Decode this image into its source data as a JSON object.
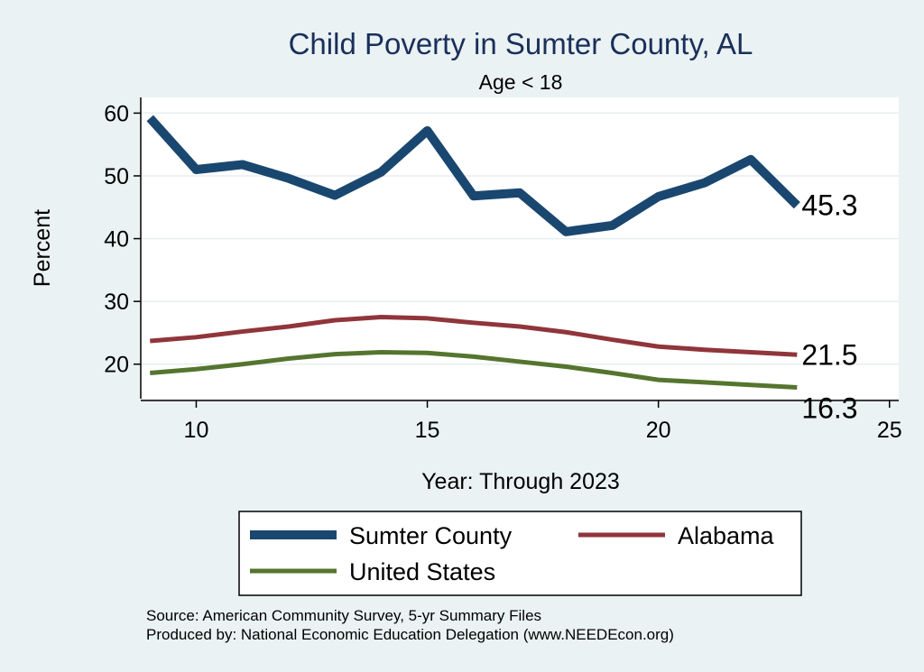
{
  "chart_data": {
    "type": "line",
    "title": "Child Poverty in Sumter County, AL",
    "subtitle": "Age < 18",
    "xlabel": "Year: Through 2023",
    "ylabel": "Percent",
    "xlim": [
      8.8,
      25.2
    ],
    "ylim": [
      14.5,
      62.5
    ],
    "x_ticks": [
      10,
      15,
      20,
      25
    ],
    "y_ticks": [
      20,
      30,
      40,
      50,
      60
    ],
    "grid": true,
    "x": [
      9,
      10,
      11,
      12,
      13,
      14,
      15,
      16,
      17,
      18,
      19,
      20,
      21,
      22,
      23
    ],
    "series": [
      {
        "name": "Sumter County",
        "color": "#1a476f",
        "values": [
          59.2,
          51.0,
          51.8,
          49.6,
          46.9,
          50.6,
          57.2,
          46.8,
          47.3,
          41.1,
          42.1,
          46.7,
          48.9,
          52.6,
          45.3
        ],
        "end_label": "45.3"
      },
      {
        "name": "Alabama",
        "color": "#90353b",
        "values": [
          23.7,
          24.3,
          25.2,
          26.0,
          27.0,
          27.5,
          27.3,
          26.6,
          26.0,
          25.1,
          23.9,
          22.8,
          22.3,
          21.9,
          21.5
        ],
        "end_label": "21.5"
      },
      {
        "name": "United States",
        "color": "#55752f",
        "values": [
          18.6,
          19.2,
          20.0,
          20.9,
          21.6,
          21.9,
          21.8,
          21.2,
          20.4,
          19.6,
          18.6,
          17.5,
          17.1,
          16.7,
          16.3
        ],
        "end_label": "16.3"
      }
    ],
    "legend_position": "bottom"
  },
  "source_note": "Source: American Community Survey, 5-yr Summary Files",
  "produced_by": "Produced by: National Economic Education Delegation (www.NEEDEcon.org)"
}
